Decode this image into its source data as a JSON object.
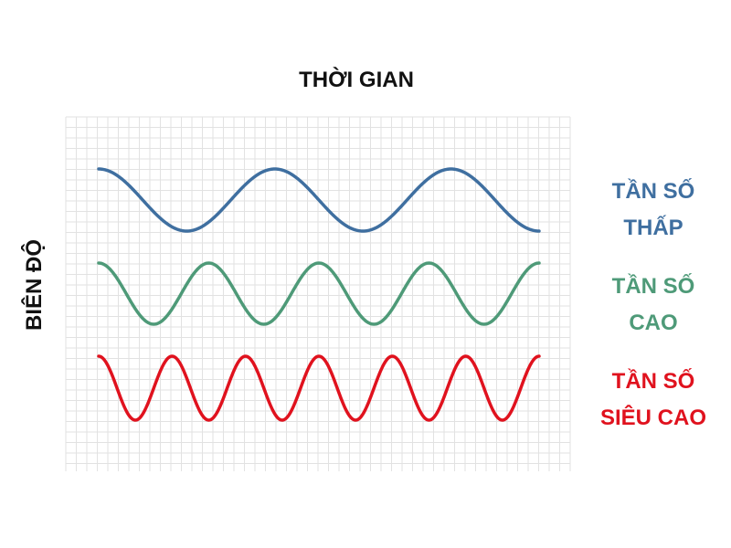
{
  "title": "THỜI GIAN",
  "y_label": "BIÊN ĐỘ",
  "colors": {
    "low": "#3f6fa0",
    "high": "#4e9a78",
    "ultra": "#e0121e",
    "grid": "#e2e2e2"
  },
  "waves": [
    {
      "key": "low",
      "line1": "TẦN SỐ",
      "line2": "THẤP",
      "cycles": 2.5
    },
    {
      "key": "high",
      "line1": "TẦN SỐ",
      "line2": "CAO",
      "cycles": 4
    },
    {
      "key": "ultra",
      "line1": "TẦN SỐ",
      "line2": "SIÊU CAO",
      "cycles": 6
    }
  ]
}
